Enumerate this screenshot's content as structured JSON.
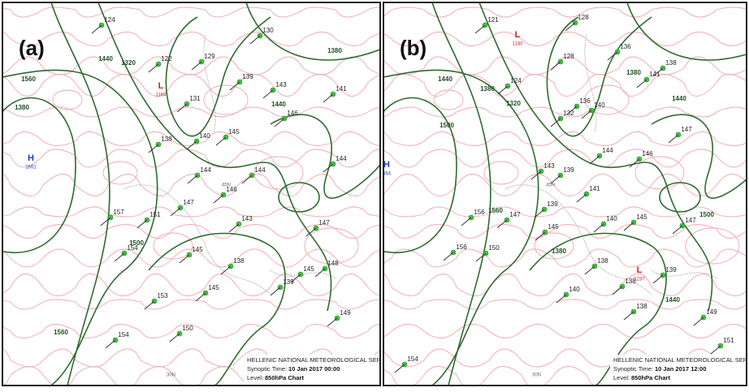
{
  "panels": [
    {
      "label": "(a)",
      "centers": [
        {
          "kind": "H",
          "value": "1661"
        },
        {
          "kind": "L",
          "value": "1164"
        }
      ],
      "contour_labels": [
        "1560",
        "1440",
        "1320",
        "1380",
        "1500",
        "1560",
        "1380",
        "1440"
      ],
      "stations": [
        "124",
        "130",
        "122",
        "129",
        "131",
        "139",
        "143",
        "146",
        "138",
        "140",
        "145",
        "144",
        "147",
        "146",
        "151",
        "157",
        "154",
        "145",
        "143",
        "138",
        "139",
        "145",
        "148",
        "147",
        "153",
        "145",
        "150",
        "154",
        "149",
        "144",
        "144",
        "141"
      ],
      "latitudes": [
        "45N",
        "30N"
      ],
      "footer": {
        "agency": "HELLENIC NATIONAL METEOROLOGICAL SERVICE",
        "time_label": "Synoptic Time:",
        "time": "10 Jan 2017 00:00",
        "level_label": "Level:",
        "level": "850hPa Chart"
      }
    },
    {
      "label": "(b)",
      "centers": [
        {
          "kind": "H",
          "value": "664"
        },
        {
          "kind": "L",
          "value": "1140"
        },
        {
          "kind": "L",
          "value": "1237"
        }
      ],
      "contour_labels": [
        "1440",
        "1500",
        "1380",
        "1320",
        "1560",
        "1380",
        "1440",
        "1500",
        "1380",
        "1440"
      ],
      "stations": [
        "121",
        "128",
        "124",
        "128",
        "132",
        "136",
        "140",
        "136",
        "141",
        "138",
        "147",
        "146",
        "144",
        "143",
        "139",
        "141",
        "139",
        "147",
        "156",
        "150",
        "145",
        "140",
        "145",
        "147",
        "138",
        "138",
        "139",
        "140",
        "138",
        "149",
        "154",
        "151",
        "156"
      ],
      "latitudes": [
        "45N",
        "30N"
      ],
      "footer": {
        "agency": "HELLENIC NATIONAL METEOROLOGICAL SERVICE",
        "time_label": "Synoptic Time:",
        "time": "10 Jan 2017 12:00",
        "level_label": "Level:",
        "level": "850hPa Chart"
      }
    }
  ]
}
